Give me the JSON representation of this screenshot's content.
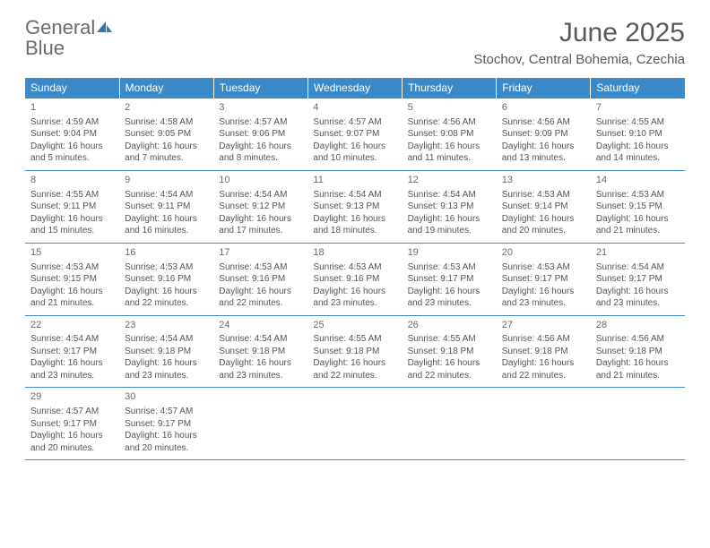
{
  "brand": {
    "part1": "General",
    "part2": "Blue"
  },
  "title": "June 2025",
  "location": "Stochov, Central Bohemia, Czechia",
  "colors": {
    "header_bg": "#3a8ac9",
    "header_text": "#ffffff",
    "border": "#3a8ac9",
    "text": "#555555",
    "title_text": "#595959",
    "logo_gray": "#6a6a6a",
    "logo_blue": "#2e75b6",
    "background": "#ffffff"
  },
  "typography": {
    "title_fontsize": 30,
    "location_fontsize": 15,
    "weekday_fontsize": 12,
    "cell_fontsize": 10
  },
  "layout": {
    "columns": 7,
    "rows": 5
  },
  "weekdays": [
    "Sunday",
    "Monday",
    "Tuesday",
    "Wednesday",
    "Thursday",
    "Friday",
    "Saturday"
  ],
  "days": [
    {
      "n": "1",
      "sunrise": "Sunrise: 4:59 AM",
      "sunset": "Sunset: 9:04 PM",
      "daylight": "Daylight: 16 hours and 5 minutes."
    },
    {
      "n": "2",
      "sunrise": "Sunrise: 4:58 AM",
      "sunset": "Sunset: 9:05 PM",
      "daylight": "Daylight: 16 hours and 7 minutes."
    },
    {
      "n": "3",
      "sunrise": "Sunrise: 4:57 AM",
      "sunset": "Sunset: 9:06 PM",
      "daylight": "Daylight: 16 hours and 8 minutes."
    },
    {
      "n": "4",
      "sunrise": "Sunrise: 4:57 AM",
      "sunset": "Sunset: 9:07 PM",
      "daylight": "Daylight: 16 hours and 10 minutes."
    },
    {
      "n": "5",
      "sunrise": "Sunrise: 4:56 AM",
      "sunset": "Sunset: 9:08 PM",
      "daylight": "Daylight: 16 hours and 11 minutes."
    },
    {
      "n": "6",
      "sunrise": "Sunrise: 4:56 AM",
      "sunset": "Sunset: 9:09 PM",
      "daylight": "Daylight: 16 hours and 13 minutes."
    },
    {
      "n": "7",
      "sunrise": "Sunrise: 4:55 AM",
      "sunset": "Sunset: 9:10 PM",
      "daylight": "Daylight: 16 hours and 14 minutes."
    },
    {
      "n": "8",
      "sunrise": "Sunrise: 4:55 AM",
      "sunset": "Sunset: 9:11 PM",
      "daylight": "Daylight: 16 hours and 15 minutes."
    },
    {
      "n": "9",
      "sunrise": "Sunrise: 4:54 AM",
      "sunset": "Sunset: 9:11 PM",
      "daylight": "Daylight: 16 hours and 16 minutes."
    },
    {
      "n": "10",
      "sunrise": "Sunrise: 4:54 AM",
      "sunset": "Sunset: 9:12 PM",
      "daylight": "Daylight: 16 hours and 17 minutes."
    },
    {
      "n": "11",
      "sunrise": "Sunrise: 4:54 AM",
      "sunset": "Sunset: 9:13 PM",
      "daylight": "Daylight: 16 hours and 18 minutes."
    },
    {
      "n": "12",
      "sunrise": "Sunrise: 4:54 AM",
      "sunset": "Sunset: 9:13 PM",
      "daylight": "Daylight: 16 hours and 19 minutes."
    },
    {
      "n": "13",
      "sunrise": "Sunrise: 4:53 AM",
      "sunset": "Sunset: 9:14 PM",
      "daylight": "Daylight: 16 hours and 20 minutes."
    },
    {
      "n": "14",
      "sunrise": "Sunrise: 4:53 AM",
      "sunset": "Sunset: 9:15 PM",
      "daylight": "Daylight: 16 hours and 21 minutes."
    },
    {
      "n": "15",
      "sunrise": "Sunrise: 4:53 AM",
      "sunset": "Sunset: 9:15 PM",
      "daylight": "Daylight: 16 hours and 21 minutes."
    },
    {
      "n": "16",
      "sunrise": "Sunrise: 4:53 AM",
      "sunset": "Sunset: 9:16 PM",
      "daylight": "Daylight: 16 hours and 22 minutes."
    },
    {
      "n": "17",
      "sunrise": "Sunrise: 4:53 AM",
      "sunset": "Sunset: 9:16 PM",
      "daylight": "Daylight: 16 hours and 22 minutes."
    },
    {
      "n": "18",
      "sunrise": "Sunrise: 4:53 AM",
      "sunset": "Sunset: 9:16 PM",
      "daylight": "Daylight: 16 hours and 23 minutes."
    },
    {
      "n": "19",
      "sunrise": "Sunrise: 4:53 AM",
      "sunset": "Sunset: 9:17 PM",
      "daylight": "Daylight: 16 hours and 23 minutes."
    },
    {
      "n": "20",
      "sunrise": "Sunrise: 4:53 AM",
      "sunset": "Sunset: 9:17 PM",
      "daylight": "Daylight: 16 hours and 23 minutes."
    },
    {
      "n": "21",
      "sunrise": "Sunrise: 4:54 AM",
      "sunset": "Sunset: 9:17 PM",
      "daylight": "Daylight: 16 hours and 23 minutes."
    },
    {
      "n": "22",
      "sunrise": "Sunrise: 4:54 AM",
      "sunset": "Sunset: 9:17 PM",
      "daylight": "Daylight: 16 hours and 23 minutes."
    },
    {
      "n": "23",
      "sunrise": "Sunrise: 4:54 AM",
      "sunset": "Sunset: 9:18 PM",
      "daylight": "Daylight: 16 hours and 23 minutes."
    },
    {
      "n": "24",
      "sunrise": "Sunrise: 4:54 AM",
      "sunset": "Sunset: 9:18 PM",
      "daylight": "Daylight: 16 hours and 23 minutes."
    },
    {
      "n": "25",
      "sunrise": "Sunrise: 4:55 AM",
      "sunset": "Sunset: 9:18 PM",
      "daylight": "Daylight: 16 hours and 22 minutes."
    },
    {
      "n": "26",
      "sunrise": "Sunrise: 4:55 AM",
      "sunset": "Sunset: 9:18 PM",
      "daylight": "Daylight: 16 hours and 22 minutes."
    },
    {
      "n": "27",
      "sunrise": "Sunrise: 4:56 AM",
      "sunset": "Sunset: 9:18 PM",
      "daylight": "Daylight: 16 hours and 22 minutes."
    },
    {
      "n": "28",
      "sunrise": "Sunrise: 4:56 AM",
      "sunset": "Sunset: 9:18 PM",
      "daylight": "Daylight: 16 hours and 21 minutes."
    },
    {
      "n": "29",
      "sunrise": "Sunrise: 4:57 AM",
      "sunset": "Sunset: 9:17 PM",
      "daylight": "Daylight: 16 hours and 20 minutes."
    },
    {
      "n": "30",
      "sunrise": "Sunrise: 4:57 AM",
      "sunset": "Sunset: 9:17 PM",
      "daylight": "Daylight: 16 hours and 20 minutes."
    }
  ]
}
